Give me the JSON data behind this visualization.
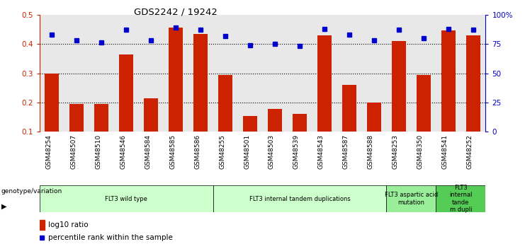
{
  "title": "GDS2242 / 19242",
  "samples": [
    "GSM48254",
    "GSM48507",
    "GSM48510",
    "GSM48546",
    "GSM48584",
    "GSM48585",
    "GSM48586",
    "GSM48255",
    "GSM48501",
    "GSM48503",
    "GSM48539",
    "GSM48543",
    "GSM48587",
    "GSM48588",
    "GSM48253",
    "GSM48350",
    "GSM48541",
    "GSM48252"
  ],
  "log10_ratio": [
    0.3,
    0.195,
    0.195,
    0.365,
    0.215,
    0.455,
    0.435,
    0.295,
    0.155,
    0.178,
    0.162,
    0.43,
    0.26,
    0.2,
    0.41,
    0.295,
    0.445,
    0.43
  ],
  "percentile_rank": [
    83,
    78,
    76,
    87,
    78,
    89,
    87,
    82,
    74,
    75,
    73,
    88,
    83,
    78,
    87,
    80,
    88,
    87
  ],
  "groups": [
    {
      "label": "FLT3 wild type",
      "start": 0,
      "end": 7,
      "color": "#ccffcc"
    },
    {
      "label": "FLT3 internal tandem duplications",
      "start": 7,
      "end": 14,
      "color": "#ccffcc"
    },
    {
      "label": "FLT3 aspartic acid\nmutation",
      "start": 14,
      "end": 16,
      "color": "#99ee99"
    },
    {
      "label": "FLT3\ninternal\ntande\nm dupli",
      "start": 16,
      "end": 18,
      "color": "#55cc55"
    }
  ],
  "ylim_left": [
    0.1,
    0.5
  ],
  "ylim_right": [
    0,
    100
  ],
  "bar_color": "#cc2200",
  "dot_color": "#0000cc",
  "plot_bg": "#e8e8e8",
  "left_axis_color": "#cc2200",
  "right_axis_color": "#0000cc"
}
